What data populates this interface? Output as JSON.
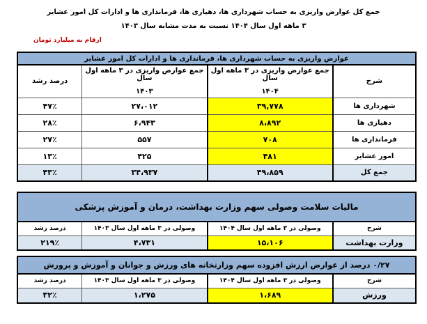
{
  "title_line1": "جمع کل عوارض واریزی به حساب شهرداری ها، دهیاری ها، فرمانداری ها و ادارات کل امور عشایر",
  "title_line2": "۳ ماهه اول سال ۱۴۰۴ نسبت به مدت مشابه سال ۱۴۰۳",
  "unit_note": "ارقام به میلیارد تومان",
  "colors": {
    "header_band": "#95b3d7",
    "highlight": "#ffff00",
    "light_row": "#dce6f1",
    "note": "#c00000"
  },
  "table1": {
    "title": "عوارض واریزی به حساب شهرداری ها، فرمانداری ها و ادارات کل امور عشایر",
    "headers": {
      "desc": "شرح",
      "y1404_line1": "جمع عوارض واریزی در ۳ ماهه اول سال",
      "y1404_line2": "۱۴۰۴",
      "y1403_line1": "جمع عوارض واریزی در ۳ ماهه اول سال",
      "y1403_line2": "۱۴۰۳",
      "growth": "درصد رشد"
    },
    "rows": [
      {
        "desc": "شهرداری ها",
        "y1404": "۳۹,۷۷۸",
        "y1403": "۲۷،۰۱۲",
        "growth": "۴۷٪"
      },
      {
        "desc": "دهیاری ها",
        "y1404": "۸،۸۹۲",
        "y1403": "۶،۹۴۳",
        "growth": "۲۸٪"
      },
      {
        "desc": "فرمانداری ها",
        "y1404": "۷۰۸",
        "y1403": "۵۵۷",
        "growth": "۲۷٪"
      },
      {
        "desc": "امور عشایر",
        "y1404": "۴۸۱",
        "y1403": "۴۲۵",
        "growth": "۱۳٪"
      },
      {
        "desc": "جمع کل",
        "y1404": "۴۹،۸۵۹",
        "y1403": "۳۴،۹۳۷",
        "growth": "۴۳٪"
      }
    ]
  },
  "table2": {
    "title": "مالیات سلامت وصولی سهم  وزارت بهداشت، درمان و آموزش پزشکی",
    "headers": {
      "desc": "شرح",
      "y1404": "وصولی در ۳ ماهه اول سال ۱۴۰۴",
      "y1403": "وصولی در ۳ ماهه اول سال ۱۴۰۳",
      "growth": "درصد رشد"
    },
    "row": {
      "desc": "وزارت بهداشت",
      "y1404": "۱۵،۱۰۶",
      "y1403": "۴،۷۳۱",
      "growth": "۲۱۹٪"
    }
  },
  "table3": {
    "title": "۰/۲۷ درصد از عوارض ارزش افزوده سهم وزارتخانه های ورزش و جوانان و آموزش و پرورش",
    "headers": {
      "desc": "شرح",
      "y1404": "وصولی در ۳ ماهه اول سال ۱۴۰۴",
      "y1403": "وصولی در ۳ ماهه اول سال ۱۴۰۳",
      "growth": "درصد رشد"
    },
    "row": {
      "desc": "ورزش",
      "y1404": "۱،۶۸۹",
      "y1403": "۱،۲۷۵",
      "growth": "۳۲٪"
    }
  }
}
